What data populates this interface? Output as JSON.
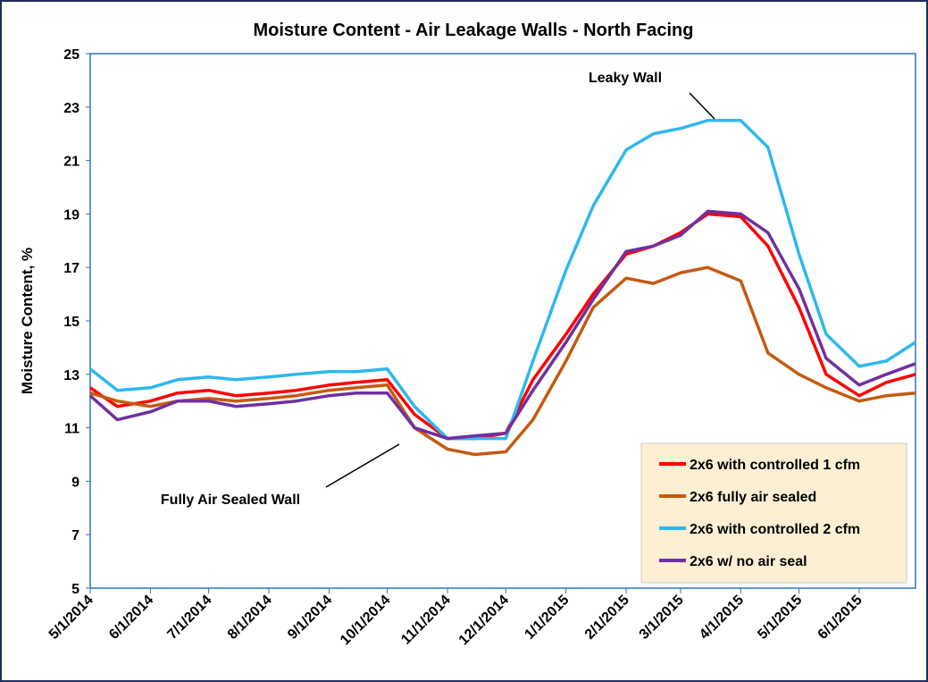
{
  "chart_data": {
    "type": "line",
    "title": "Moisture Content - Air Leakage Walls - North Facing",
    "y_label": "Moisture Content, %",
    "x": [
      "2014-05-01",
      "2014-05-15",
      "2014-06-01",
      "2014-06-15",
      "2014-07-01",
      "2014-07-15",
      "2014-08-01",
      "2014-08-15",
      "2014-09-01",
      "2014-09-15",
      "2014-10-01",
      "2014-10-15",
      "2014-11-01",
      "2014-11-15",
      "2014-12-01",
      "2014-12-15",
      "2015-01-01",
      "2015-01-15",
      "2015-02-01",
      "2015-02-15",
      "2015-03-01",
      "2015-03-15",
      "2015-04-01",
      "2015-04-15",
      "2015-05-01",
      "2015-05-15",
      "2015-06-01",
      "2015-06-15",
      "2015-06-30"
    ],
    "series": [
      {
        "name": "2x6 with controlled 1 cfm",
        "color": "#ff0000",
        "values": [
          12.5,
          11.8,
          12.0,
          12.3,
          12.4,
          12.2,
          12.3,
          12.4,
          12.6,
          12.7,
          12.8,
          11.5,
          10.6,
          10.6,
          10.8,
          12.8,
          14.5,
          16.0,
          17.5,
          17.8,
          18.3,
          19.0,
          18.9,
          17.8,
          15.5,
          13.0,
          12.2,
          12.7,
          13.0
        ]
      },
      {
        "name": "2x6 fully air sealed",
        "color": "#c55a11",
        "values": [
          12.3,
          12.0,
          11.8,
          12.0,
          12.1,
          12.0,
          12.1,
          12.2,
          12.4,
          12.5,
          12.6,
          11.0,
          10.2,
          10.0,
          10.1,
          11.3,
          13.5,
          15.5,
          16.6,
          16.4,
          16.8,
          17.0,
          16.5,
          13.8,
          13.0,
          12.5,
          12.0,
          12.2,
          12.3
        ]
      },
      {
        "name": "2x6 with controlled 2 cfm",
        "color": "#2eb8ec",
        "values": [
          13.2,
          12.4,
          12.5,
          12.8,
          12.9,
          12.8,
          12.9,
          13.0,
          13.1,
          13.1,
          13.2,
          11.8,
          10.6,
          10.6,
          10.6,
          13.5,
          16.9,
          19.3,
          21.4,
          22.0,
          22.2,
          22.5,
          22.5,
          21.5,
          17.5,
          14.5,
          13.3,
          13.5,
          14.2
        ]
      },
      {
        "name": "2x6 w/ no air seal",
        "color": "#7030a0",
        "values": [
          12.2,
          11.3,
          11.6,
          12.0,
          12.0,
          11.8,
          11.9,
          12.0,
          12.2,
          12.3,
          12.3,
          11.0,
          10.6,
          10.7,
          10.8,
          12.4,
          14.2,
          15.8,
          17.6,
          17.8,
          18.2,
          19.1,
          19.0,
          18.3,
          16.2,
          13.6,
          12.6,
          13.0,
          13.4
        ]
      }
    ],
    "xlim": [
      "2014-05-01",
      "2015-06-30"
    ],
    "xticks": [
      {
        "value": "2014-05-01",
        "label": "5/1/2014"
      },
      {
        "value": "2014-06-01",
        "label": "6/1/2014"
      },
      {
        "value": "2014-07-01",
        "label": "7/1/2014"
      },
      {
        "value": "2014-08-01",
        "label": "8/1/2014"
      },
      {
        "value": "2014-09-01",
        "label": "9/1/2014"
      },
      {
        "value": "2014-10-01",
        "label": "10/1/2014"
      },
      {
        "value": "2014-11-01",
        "label": "11/1/2014"
      },
      {
        "value": "2014-12-01",
        "label": "12/1/2014"
      },
      {
        "value": "2015-01-01",
        "label": "1/1/2015"
      },
      {
        "value": "2015-02-01",
        "label": "2/1/2015"
      },
      {
        "value": "2015-03-01",
        "label": "3/1/2015"
      },
      {
        "value": "2015-04-01",
        "label": "4/1/2015"
      },
      {
        "value": "2015-05-01",
        "label": "5/1/2015"
      },
      {
        "value": "2015-06-01",
        "label": "6/1/2015"
      }
    ],
    "ylim": [
      5,
      25
    ],
    "yticks": [
      5,
      7,
      9,
      11,
      13,
      15,
      17,
      19,
      21,
      23,
      25
    ],
    "grid": false,
    "legend": "lower-right",
    "annotations": [
      "Leaky Wall",
      "Fully Air Sealed Wall"
    ]
  }
}
